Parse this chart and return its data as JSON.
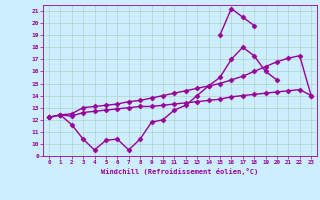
{
  "xlabel": "Windchill (Refroidissement éolien,°C)",
  "bg_color": "#cceeff",
  "line_color": "#990099",
  "grid_color": "#aaccbb",
  "xlim": [
    -0.5,
    23.5
  ],
  "ylim": [
    9,
    21.5
  ],
  "xticks": [
    0,
    1,
    2,
    3,
    4,
    5,
    6,
    7,
    8,
    9,
    10,
    11,
    12,
    13,
    14,
    15,
    16,
    17,
    18,
    19,
    20,
    21,
    22,
    23
  ],
  "yticks": [
    9,
    10,
    11,
    12,
    13,
    14,
    15,
    16,
    17,
    18,
    19,
    20,
    21
  ],
  "series": [
    {
      "x": [
        0,
        1,
        2,
        3,
        4,
        5,
        6,
        7,
        8,
        9,
        10,
        11,
        12,
        13,
        14,
        15,
        16,
        17,
        18,
        19,
        20
      ],
      "y": [
        12.2,
        12.4,
        11.6,
        10.4,
        9.5,
        10.3,
        10.4,
        9.5,
        10.4,
        11.8,
        12.0,
        12.8,
        13.2,
        14.0,
        14.8,
        15.5,
        17.0,
        18.0,
        17.3,
        16.0,
        15.3
      ]
    },
    {
      "x": [
        0,
        1,
        2,
        3,
        4,
        5,
        6,
        7,
        8,
        9,
        10,
        11,
        12,
        13,
        14,
        15,
        16,
        17,
        18,
        19,
        20,
        21,
        22,
        23
      ],
      "y": [
        12.2,
        12.4,
        12.5,
        13.0,
        13.1,
        13.2,
        13.3,
        13.5,
        13.6,
        13.8,
        14.0,
        14.2,
        14.4,
        14.6,
        14.8,
        15.0,
        15.3,
        15.6,
        16.0,
        16.4,
        16.8,
        17.1,
        17.3,
        14.0
      ]
    },
    {
      "x": [
        0,
        1,
        2,
        3,
        4,
        5,
        6,
        7,
        8,
        9,
        10,
        11,
        12,
        13,
        14,
        15,
        16,
        17,
        18,
        19,
        20,
        21,
        22,
        23
      ],
      "y": [
        12.2,
        12.4,
        12.3,
        12.6,
        12.7,
        12.8,
        12.9,
        13.0,
        13.1,
        13.1,
        13.2,
        13.3,
        13.4,
        13.5,
        13.6,
        13.7,
        13.9,
        14.0,
        14.1,
        14.2,
        14.3,
        14.4,
        14.5,
        14.0
      ]
    },
    {
      "x": [
        15,
        16,
        17,
        18
      ],
      "y": [
        19.0,
        21.2,
        20.5,
        19.8
      ]
    }
  ],
  "marker": "D",
  "marker_size": 2.5,
  "line_width": 1.0
}
